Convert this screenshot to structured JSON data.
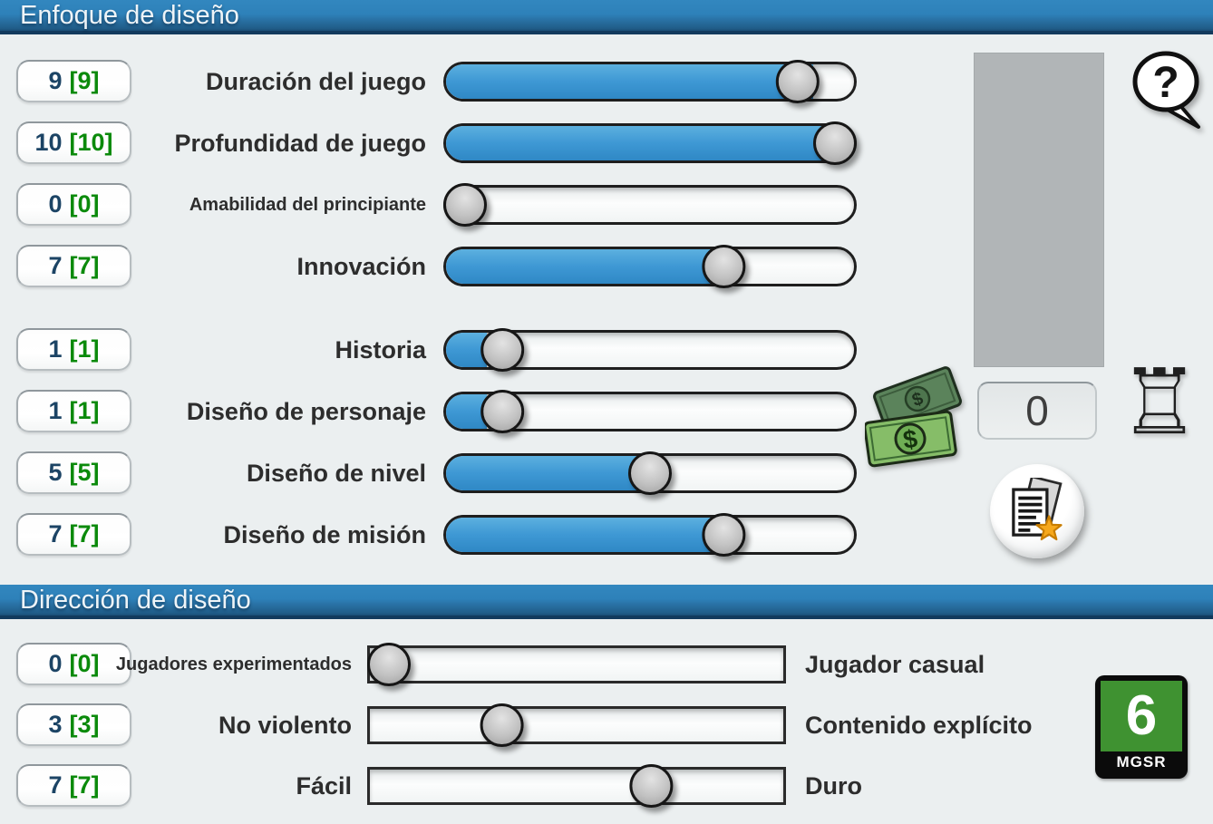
{
  "colors": {
    "background": "#ebeff0",
    "header_blue_top": "#3287bf",
    "header_blue_bottom": "#1a4d75",
    "slider_fill_blue": "#3e98d4",
    "badge_score_navy": "#1c4465",
    "badge_target_green": "#0b8a0b",
    "rating_green": "#3f9231",
    "money_green": "#86bd68"
  },
  "sections": [
    {
      "title": "Enfoque de diseño",
      "rows": [
        {
          "score": "9",
          "target": "[9]",
          "label": "Duración del juego",
          "value": 9,
          "max": 10
        },
        {
          "score": "10",
          "target": "[10]",
          "label": "Profundidad de juego",
          "value": 10,
          "max": 10
        },
        {
          "score": "0",
          "target": "[0]",
          "label": "Amabilidad del principiante",
          "value": 0,
          "max": 10
        },
        {
          "score": "7",
          "target": "[7]",
          "label": "Innovación",
          "value": 7,
          "max": 10
        },
        {
          "score": "1",
          "target": "[1]",
          "label": "Historia",
          "value": 1,
          "max": 10
        },
        {
          "score": "1",
          "target": "[1]",
          "label": "Diseño de personaje",
          "value": 1,
          "max": 10
        },
        {
          "score": "5",
          "target": "[5]",
          "label": "Diseño de nivel",
          "value": 5,
          "max": 10
        },
        {
          "score": "7",
          "target": "[7]",
          "label": "Diseño de misión",
          "value": 7,
          "max": 10
        }
      ]
    },
    {
      "title": "Dirección de diseño",
      "rows": [
        {
          "score": "0",
          "target": "[0]",
          "label": "Jugadores experimentados",
          "right_label": "Jugador casual",
          "value": 0,
          "max": 10
        },
        {
          "score": "3",
          "target": "[3]",
          "label": "No violento",
          "right_label": "Contenido explícito",
          "value": 3,
          "max": 10
        },
        {
          "score": "7",
          "target": "[7]",
          "label": "Fácil",
          "right_label": "Duro",
          "value": 7,
          "max": 10
        }
      ]
    }
  ],
  "panel": {
    "amount": "0"
  },
  "icons": {
    "help_glyph": "?",
    "dollar": "$",
    "rook_glyph": "♖"
  },
  "rating": {
    "value": "6",
    "agency": "MGSR"
  }
}
